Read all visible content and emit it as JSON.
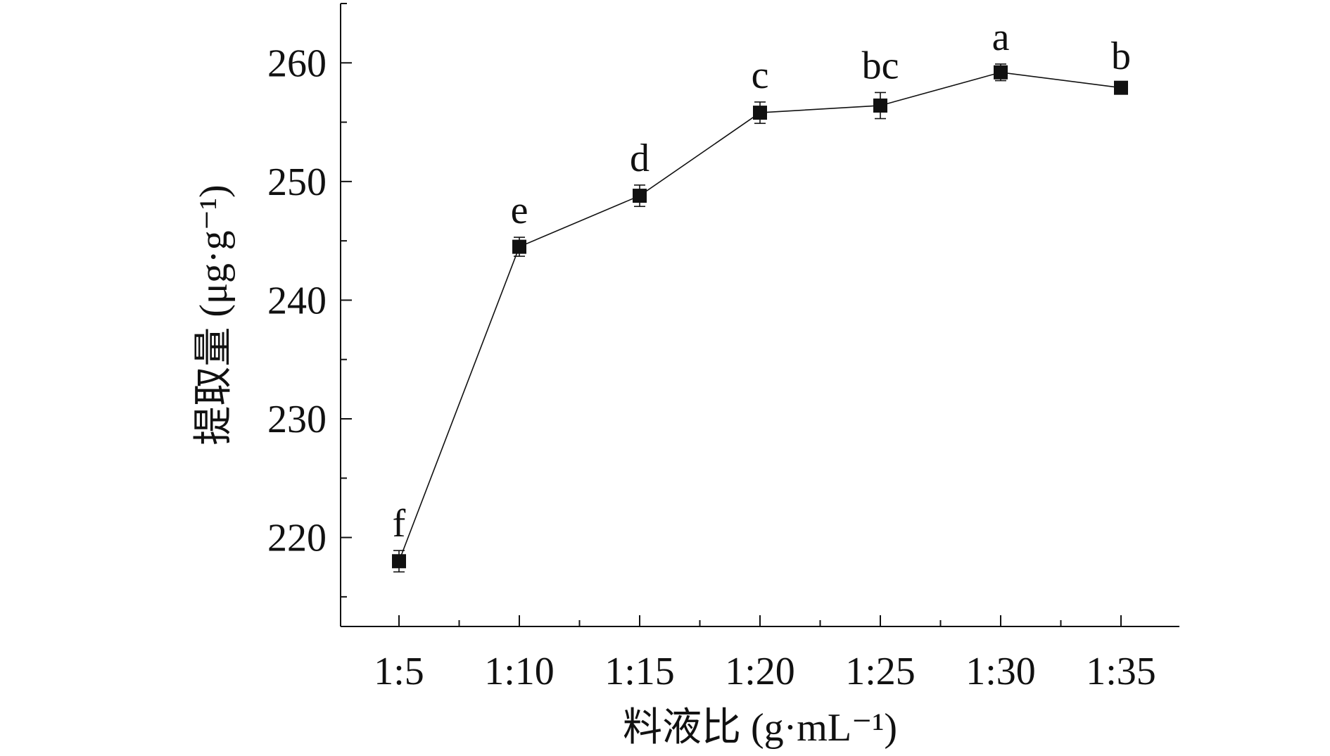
{
  "chart_data": {
    "type": "line",
    "categories": [
      "1:5",
      "1:10",
      "1:15",
      "1:20",
      "1:25",
      "1:30",
      "1:35"
    ],
    "series": [
      {
        "values": [
          218.0,
          244.5,
          248.8,
          255.8,
          256.4,
          259.2,
          257.9
        ],
        "errors": [
          0.9,
          0.8,
          0.9,
          0.9,
          1.1,
          0.7,
          0.4
        ],
        "significance": [
          "f",
          "e",
          "d",
          "c",
          "bc",
          "a",
          "b"
        ],
        "marker": "square",
        "color": "#111111"
      }
    ],
    "xlabel": "料液比 (g·mL⁻¹)",
    "ylabel": "提取量 (μg·g⁻¹)",
    "ylim": [
      212.5,
      265
    ],
    "yticks": [
      220,
      230,
      240,
      250,
      260
    ],
    "grid": false,
    "legend": "none"
  }
}
